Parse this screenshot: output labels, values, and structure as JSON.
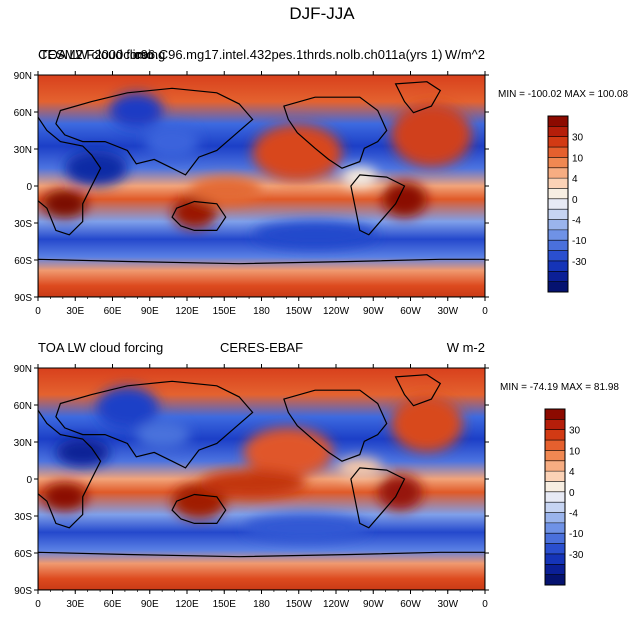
{
  "figure": {
    "title": "DJF-JJA"
  },
  "chart_data": [
    {
      "type": "heatmap",
      "projection": "cylindrical-equidistant",
      "left_title": "CESM2 F2000climo",
      "left_title_overlap": "TOA LW cloud forcing",
      "center_title": "c96.C96.mg17.intel.432pes.1thrds.nolb.ch011a(yrs 1)",
      "right_title": "W/m^2",
      "stats": "MIN = -100.02 MAX = 100.08",
      "min": -100.02,
      "max": 100.08,
      "x_ticks": [
        "0",
        "30E",
        "60E",
        "90E",
        "120E",
        "150E",
        "180",
        "150W",
        "120W",
        "90W",
        "60W",
        "30W",
        "0"
      ],
      "y_ticks": [
        "90N",
        "60N",
        "30N",
        "0",
        "30S",
        "60S",
        "90S"
      ],
      "colorbar_labels": [
        "30",
        "10",
        "4",
        "0",
        "-4",
        "-10",
        "-30"
      ],
      "colorbar_colors": [
        "#8c0a00",
        "#b51e0a",
        "#d23a14",
        "#e5602e",
        "#f08852",
        "#f7ad82",
        "#fbd2b6",
        "#f7eee2",
        "#e7eaf5",
        "#c6d4f2",
        "#9ab4ec",
        "#6f92e6",
        "#4a70dc",
        "#2a4fcf",
        "#1534b8",
        "#0b1f96",
        "#051270"
      ]
    },
    {
      "type": "heatmap",
      "projection": "cylindrical-equidistant",
      "left_title": "TOA LW cloud forcing",
      "center_title": "CERES-EBAF",
      "right_title": "W m-2",
      "stats": "MIN = -74.19 MAX =  81.98",
      "min": -74.19,
      "max": 81.98,
      "x_ticks": [
        "0",
        "30E",
        "60E",
        "90E",
        "120E",
        "150E",
        "180",
        "150W",
        "120W",
        "90W",
        "60W",
        "30W",
        "0"
      ],
      "y_ticks": [
        "90N",
        "60N",
        "30N",
        "0",
        "30S",
        "60S",
        "90S"
      ],
      "colorbar_labels": [
        "30",
        "10",
        "4",
        "0",
        "-4",
        "-10",
        "-30"
      ],
      "colorbar_colors": [
        "#8c0a00",
        "#b51e0a",
        "#d23a14",
        "#e5602e",
        "#f08852",
        "#f7ad82",
        "#fbd2b6",
        "#f7eee2",
        "#e7eaf5",
        "#c6d4f2",
        "#9ab4ec",
        "#6f92e6",
        "#4a70dc",
        "#2a4fcf",
        "#1534b8",
        "#0b1f96",
        "#051270"
      ]
    }
  ]
}
